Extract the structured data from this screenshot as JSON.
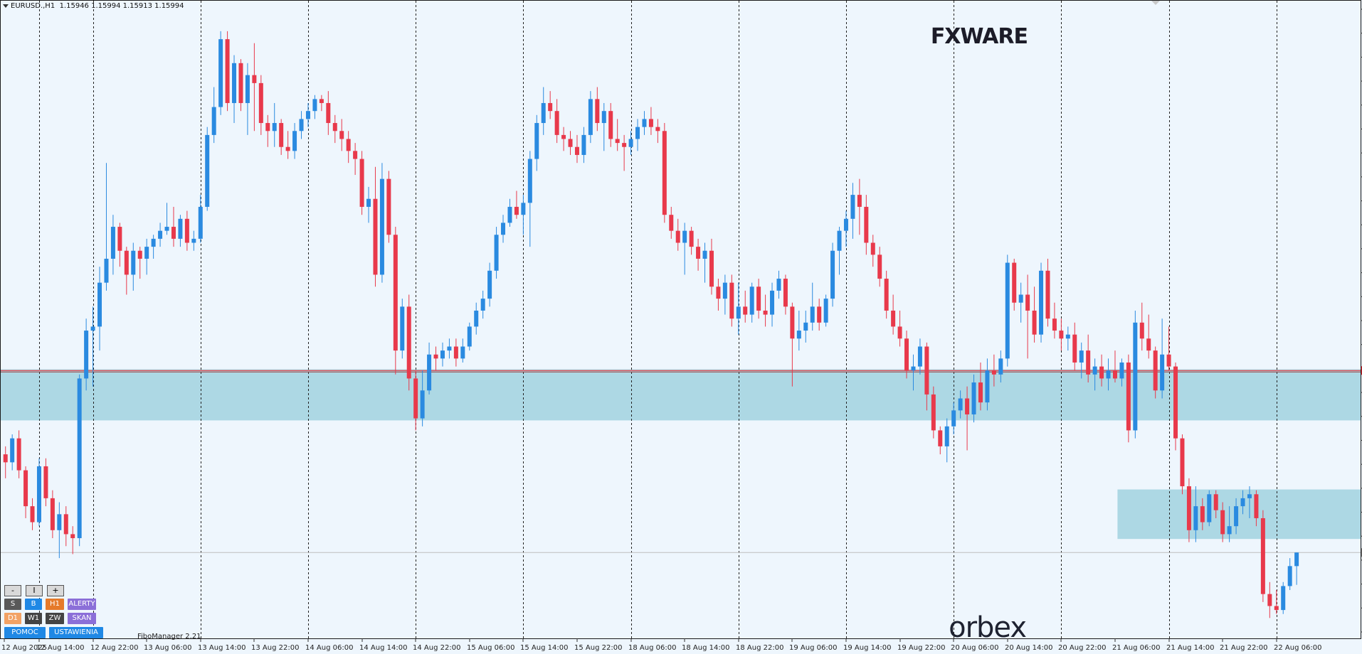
{
  "header": {
    "symbol": "EURUSD.,H1",
    "ohlc": "1.15946 1.15994 1.15913 1.15994"
  },
  "colors": {
    "background": "#eef6fd",
    "bull": "#2a8ae0",
    "bear": "#e8394b",
    "zone": "#a9d6e3",
    "price_marker_red": "#e8252f",
    "price_marker_gray": "#7a7a7a"
  },
  "logos": {
    "fxware": "FXWARE",
    "orbex": "orbex"
  },
  "fibo_label": "FiboManager 2.21",
  "panel": {
    "minus": "-",
    "reset": "I",
    "plus": "+",
    "buttons": [
      {
        "label": "S",
        "color": "gray"
      },
      {
        "label": "B",
        "color": "blue"
      },
      {
        "label": "H1",
        "color": "orange"
      },
      {
        "label": "ALERTY",
        "color": "purple"
      },
      {
        "label": "D1",
        "color": "peach"
      },
      {
        "label": "W1",
        "color": "dark"
      },
      {
        "label": "ZW",
        "color": "dark"
      },
      {
        "label": "SKAN",
        "color": "purple"
      },
      {
        "label": "POMOC",
        "color": "blue"
      },
      {
        "label": "USTAWIENIA",
        "color": "blue"
      }
    ]
  },
  "chart_data": {
    "type": "candlestick",
    "symbol": "EURUSD.",
    "timeframe": "H1",
    "ylim": [
      1.15775,
      1.17395
    ],
    "y_ticks": [
      "1.17355",
      "1.17295",
      "1.17235",
      "1.17175",
      "1.17115",
      "1.17055",
      "1.16995",
      "1.16935",
      "1.16875",
      "1.16815",
      "1.16755",
      "1.16695",
      "1.16635",
      "1.16575",
      "1.16515",
      "1.16455",
      "1.16395",
      "1.16335",
      "1.16275",
      "1.16215",
      "1.16155",
      "1.16095",
      "1.16035",
      "1.15975",
      "1.15915",
      "1.15855",
      "1.15795"
    ],
    "x_ticks": [
      "12 Aug 2025",
      "12 Aug 14:00",
      "12 Aug 22:00",
      "13 Aug 06:00",
      "13 Aug 14:00",
      "13 Aug 22:00",
      "14 Aug 06:00",
      "14 Aug 14:00",
      "14 Aug 22:00",
      "15 Aug 06:00",
      "15 Aug 14:00",
      "15 Aug 22:00",
      "18 Aug 06:00",
      "18 Aug 14:00",
      "18 Aug 22:00",
      "19 Aug 06:00",
      "19 Aug 14:00",
      "19 Aug 22:00",
      "20 Aug 06:00",
      "20 Aug 14:00",
      "20 Aug 22:00",
      "21 Aug 06:00",
      "21 Aug 14:00",
      "21 Aug 22:00",
      "22 Aug 06:00"
    ],
    "period_separators_x": [
      "12 Aug 14:00",
      "12 Aug 22:00",
      "13 Aug 14:00",
      "14 Aug 06:00",
      "14 Aug 22:00",
      "15 Aug 14:00",
      "18 Aug 06:00",
      "18 Aug 22:00",
      "19 Aug 14:00",
      "20 Aug 06:00",
      "20 Aug 22:00",
      "21 Aug 14:00",
      "22 Aug 06:00"
    ],
    "price_markers": [
      {
        "label": "1.16450",
        "price": 1.1645,
        "color": "red"
      },
      {
        "label": "1.15994",
        "price": 1.15994,
        "color": "gray"
      }
    ],
    "zones": [
      {
        "from_bar": 0,
        "to_bar": 190,
        "low": 1.16325,
        "high": 1.16453
      },
      {
        "from_bar": 166,
        "to_bar": 196,
        "low": 1.16028,
        "high": 1.16152
      }
    ],
    "candles": [
      [
        1.1624,
        1.1626,
        1.1618,
        1.1622
      ],
      [
        1.1622,
        1.1629,
        1.162,
        1.1628
      ],
      [
        1.1628,
        1.163,
        1.1618,
        1.162
      ],
      [
        1.162,
        1.1621,
        1.1608,
        1.1611
      ],
      [
        1.1611,
        1.1613,
        1.1605,
        1.1607
      ],
      [
        1.1607,
        1.1623,
        1.1606,
        1.1621
      ],
      [
        1.1621,
        1.1623,
        1.1611,
        1.1613
      ],
      [
        1.1613,
        1.1615,
        1.1603,
        1.1605
      ],
      [
        1.1605,
        1.1612,
        1.1598,
        1.1609
      ],
      [
        1.1609,
        1.1611,
        1.1601,
        1.1604
      ],
      [
        1.1604,
        1.1606,
        1.1599,
        1.1603
      ],
      [
        1.1603,
        1.1644,
        1.1601,
        1.1643
      ],
      [
        1.1643,
        1.1658,
        1.164,
        1.1655
      ],
      [
        1.1655,
        1.1661,
        1.1641,
        1.1656
      ],
      [
        1.1656,
        1.1671,
        1.165,
        1.1667
      ],
      [
        1.1667,
        1.1697,
        1.1665,
        1.1673
      ],
      [
        1.1673,
        1.1684,
        1.1669,
        1.1681
      ],
      [
        1.1681,
        1.1682,
        1.1671,
        1.1675
      ],
      [
        1.1675,
        1.1676,
        1.1664,
        1.1669
      ],
      [
        1.1669,
        1.1677,
        1.1665,
        1.1675
      ],
      [
        1.1675,
        1.1676,
        1.1668,
        1.1673
      ],
      [
        1.1673,
        1.1678,
        1.1669,
        1.1676
      ],
      [
        1.1676,
        1.1679,
        1.1673,
        1.1678
      ],
      [
        1.1678,
        1.1682,
        1.1676,
        1.168
      ],
      [
        1.168,
        1.1687,
        1.1679,
        1.1681
      ],
      [
        1.1681,
        1.1686,
        1.1676,
        1.1678
      ],
      [
        1.1678,
        1.1684,
        1.1676,
        1.1683
      ],
      [
        1.1683,
        1.1685,
        1.1675,
        1.1677
      ],
      [
        1.1677,
        1.168,
        1.1675,
        1.1678
      ],
      [
        1.1678,
        1.1689,
        1.1677,
        1.1686
      ],
      [
        1.1686,
        1.1706,
        1.1685,
        1.1704
      ],
      [
        1.1704,
        1.1716,
        1.1702,
        1.1711
      ],
      [
        1.1711,
        1.173,
        1.1709,
        1.1728
      ],
      [
        1.1728,
        1.173,
        1.171,
        1.1712
      ],
      [
        1.1712,
        1.1724,
        1.1707,
        1.1722
      ],
      [
        1.1722,
        1.1723,
        1.171,
        1.1712
      ],
      [
        1.1712,
        1.1722,
        1.1704,
        1.1719
      ],
      [
        1.1719,
        1.1727,
        1.1705,
        1.1717
      ],
      [
        1.1717,
        1.1719,
        1.1704,
        1.1707
      ],
      [
        1.1707,
        1.1709,
        1.1701,
        1.1705
      ],
      [
        1.1705,
        1.1712,
        1.1701,
        1.1707
      ],
      [
        1.1707,
        1.1708,
        1.1699,
        1.1701
      ],
      [
        1.1701,
        1.1705,
        1.1698,
        1.17
      ],
      [
        1.17,
        1.1707,
        1.1698,
        1.1705
      ],
      [
        1.1705,
        1.171,
        1.1703,
        1.1708
      ],
      [
        1.1708,
        1.1712,
        1.1706,
        1.171
      ],
      [
        1.171,
        1.1714,
        1.1708,
        1.1713
      ],
      [
        1.1713,
        1.1714,
        1.171,
        1.1712
      ],
      [
        1.1712,
        1.1715,
        1.1704,
        1.1707
      ],
      [
        1.1707,
        1.1709,
        1.1702,
        1.1705
      ],
      [
        1.1705,
        1.1708,
        1.17,
        1.1703
      ],
      [
        1.1703,
        1.1705,
        1.1697,
        1.17
      ],
      [
        1.17,
        1.1702,
        1.1694,
        1.1698
      ],
      [
        1.1698,
        1.17,
        1.1684,
        1.1686
      ],
      [
        1.1686,
        1.1691,
        1.1682,
        1.1688
      ],
      [
        1.1688,
        1.1696,
        1.1666,
        1.1669
      ],
      [
        1.1669,
        1.1697,
        1.1667,
        1.1693
      ],
      [
        1.1693,
        1.1695,
        1.1677,
        1.1679
      ],
      [
        1.1679,
        1.1681,
        1.1644,
        1.165
      ],
      [
        1.165,
        1.1663,
        1.1648,
        1.1661
      ],
      [
        1.1661,
        1.1664,
        1.164,
        1.1643
      ],
      [
        1.1643,
        1.1645,
        1.163,
        1.1633
      ],
      [
        1.1633,
        1.1645,
        1.1631,
        1.164
      ],
      [
        1.164,
        1.1652,
        1.1639,
        1.1649
      ],
      [
        1.1649,
        1.1651,
        1.1645,
        1.1648
      ],
      [
        1.1648,
        1.1652,
        1.1646,
        1.165
      ],
      [
        1.165,
        1.1653,
        1.1648,
        1.1651
      ],
      [
        1.1651,
        1.1653,
        1.1646,
        1.1648
      ],
      [
        1.1648,
        1.1653,
        1.1647,
        1.1651
      ],
      [
        1.1651,
        1.1657,
        1.165,
        1.1656
      ],
      [
        1.1656,
        1.1662,
        1.1654,
        1.166
      ],
      [
        1.166,
        1.1665,
        1.1658,
        1.1663
      ],
      [
        1.1663,
        1.1672,
        1.1661,
        1.167
      ],
      [
        1.167,
        1.1681,
        1.1668,
        1.1679
      ],
      [
        1.1679,
        1.1684,
        1.1677,
        1.1682
      ],
      [
        1.1682,
        1.1688,
        1.1681,
        1.1686
      ],
      [
        1.1686,
        1.169,
        1.1683,
        1.1684
      ],
      [
        1.1684,
        1.1689,
        1.1679,
        1.1687
      ],
      [
        1.1687,
        1.17,
        1.1676,
        1.1698
      ],
      [
        1.1698,
        1.1709,
        1.1695,
        1.1707
      ],
      [
        1.1707,
        1.1716,
        1.1704,
        1.1712
      ],
      [
        1.1712,
        1.1715,
        1.1708,
        1.171
      ],
      [
        1.171,
        1.1713,
        1.1702,
        1.1704
      ],
      [
        1.1704,
        1.1706,
        1.17,
        1.1703
      ],
      [
        1.1703,
        1.1705,
        1.1699,
        1.1701
      ],
      [
        1.1701,
        1.1704,
        1.1697,
        1.1699
      ],
      [
        1.1699,
        1.1706,
        1.1697,
        1.1704
      ],
      [
        1.1704,
        1.1715,
        1.1702,
        1.1713
      ],
      [
        1.1713,
        1.1716,
        1.1705,
        1.1707
      ],
      [
        1.1707,
        1.1712,
        1.17,
        1.171
      ],
      [
        1.171,
        1.1712,
        1.1701,
        1.1703
      ],
      [
        1.1703,
        1.1708,
        1.17,
        1.1702
      ],
      [
        1.1702,
        1.1704,
        1.1695,
        1.1701
      ],
      [
        1.1701,
        1.1705,
        1.1699,
        1.1703
      ],
      [
        1.1703,
        1.1708,
        1.17,
        1.1706
      ],
      [
        1.1706,
        1.171,
        1.1704,
        1.1708
      ],
      [
        1.1708,
        1.1711,
        1.1704,
        1.1706
      ],
      [
        1.1706,
        1.1708,
        1.1702,
        1.1705
      ],
      [
        1.1705,
        1.1707,
        1.1682,
        1.1684
      ],
      [
        1.1684,
        1.1686,
        1.1678,
        1.168
      ],
      [
        1.168,
        1.1683,
        1.1675,
        1.1677
      ],
      [
        1.1677,
        1.1682,
        1.1669,
        1.168
      ],
      [
        1.168,
        1.1681,
        1.1674,
        1.1676
      ],
      [
        1.1676,
        1.1678,
        1.167,
        1.1673
      ],
      [
        1.1673,
        1.1677,
        1.1667,
        1.1675
      ],
      [
        1.1675,
        1.1678,
        1.1664,
        1.1666
      ],
      [
        1.1666,
        1.1668,
        1.166,
        1.1663
      ],
      [
        1.1663,
        1.1669,
        1.1659,
        1.1667
      ],
      [
        1.1667,
        1.1669,
        1.1656,
        1.1658
      ],
      [
        1.1658,
        1.1667,
        1.1654,
        1.1661
      ],
      [
        1.1661,
        1.1665,
        1.1657,
        1.1659
      ],
      [
        1.1659,
        1.1667,
        1.1657,
        1.1666
      ],
      [
        1.1666,
        1.1668,
        1.1658,
        1.166
      ],
      [
        1.166,
        1.1664,
        1.1656,
        1.1659
      ],
      [
        1.1659,
        1.1667,
        1.1656,
        1.1665
      ],
      [
        1.1665,
        1.167,
        1.1663,
        1.1668
      ],
      [
        1.1668,
        1.1669,
        1.1659,
        1.1661
      ],
      [
        1.1661,
        1.1662,
        1.1641,
        1.1653
      ],
      [
        1.1653,
        1.166,
        1.165,
        1.1655
      ],
      [
        1.1655,
        1.166,
        1.1652,
        1.1657
      ],
      [
        1.1657,
        1.1667,
        1.1655,
        1.1661
      ],
      [
        1.1661,
        1.1663,
        1.1655,
        1.1657
      ],
      [
        1.1657,
        1.1664,
        1.1656,
        1.1663
      ],
      [
        1.1663,
        1.1677,
        1.1661,
        1.1675
      ],
      [
        1.1675,
        1.1681,
        1.1669,
        1.168
      ],
      [
        1.168,
        1.1685,
        1.1676,
        1.1683
      ],
      [
        1.1683,
        1.1692,
        1.1678,
        1.1689
      ],
      [
        1.1689,
        1.1693,
        1.1679,
        1.1686
      ],
      [
        1.1686,
        1.1689,
        1.1674,
        1.1677
      ],
      [
        1.1677,
        1.1679,
        1.1671,
        1.1674
      ],
      [
        1.1674,
        1.1676,
        1.1666,
        1.1668
      ],
      [
        1.1668,
        1.167,
        1.1658,
        1.166
      ],
      [
        1.166,
        1.1664,
        1.1654,
        1.1656
      ],
      [
        1.1656,
        1.166,
        1.1651,
        1.1653
      ],
      [
        1.1653,
        1.1655,
        1.1643,
        1.1645
      ],
      [
        1.1645,
        1.1649,
        1.164,
        1.1646
      ],
      [
        1.1646,
        1.1653,
        1.1644,
        1.1651
      ],
      [
        1.1651,
        1.1652,
        1.1635,
        1.1639
      ],
      [
        1.1639,
        1.1641,
        1.1628,
        1.163
      ],
      [
        1.163,
        1.1631,
        1.1624,
        1.1626
      ],
      [
        1.1626,
        1.1633,
        1.1622,
        1.1631
      ],
      [
        1.1631,
        1.1637,
        1.1629,
        1.1635
      ],
      [
        1.1635,
        1.164,
        1.1633,
        1.1638
      ],
      [
        1.1638,
        1.1641,
        1.1625,
        1.1634
      ],
      [
        1.1634,
        1.1644,
        1.1632,
        1.1642
      ],
      [
        1.1642,
        1.1647,
        1.1635,
        1.1637
      ],
      [
        1.1637,
        1.1648,
        1.1635,
        1.1645
      ],
      [
        1.1645,
        1.1649,
        1.1641,
        1.1644
      ],
      [
        1.1644,
        1.165,
        1.1642,
        1.1648
      ],
      [
        1.1648,
        1.1674,
        1.1646,
        1.1672
      ],
      [
        1.1672,
        1.1673,
        1.166,
        1.1662
      ],
      [
        1.1662,
        1.1667,
        1.1657,
        1.1664
      ],
      [
        1.1664,
        1.1669,
        1.1648,
        1.166
      ],
      [
        1.166,
        1.1666,
        1.1652,
        1.1654
      ],
      [
        1.1654,
        1.1672,
        1.1652,
        1.167
      ],
      [
        1.167,
        1.1673,
        1.1656,
        1.1658
      ],
      [
        1.1658,
        1.1662,
        1.1653,
        1.1655
      ],
      [
        1.1655,
        1.1658,
        1.165,
        1.1653
      ],
      [
        1.1653,
        1.1656,
        1.165,
        1.1654
      ],
      [
        1.1654,
        1.1657,
        1.1645,
        1.1647
      ],
      [
        1.1647,
        1.1652,
        1.1643,
        1.165
      ],
      [
        1.165,
        1.1654,
        1.1642,
        1.1644
      ],
      [
        1.1644,
        1.1648,
        1.164,
        1.1646
      ],
      [
        1.1646,
        1.1649,
        1.1641,
        1.1643
      ],
      [
        1.1643,
        1.1648,
        1.164,
        1.1645
      ],
      [
        1.1645,
        1.165,
        1.1642,
        1.1643
      ],
      [
        1.1643,
        1.1648,
        1.1641,
        1.1647
      ],
      [
        1.1647,
        1.1649,
        1.1627,
        1.163
      ],
      [
        1.163,
        1.166,
        1.1628,
        1.1657
      ],
      [
        1.1657,
        1.1662,
        1.165,
        1.1653
      ],
      [
        1.1653,
        1.1659,
        1.1648,
        1.165
      ],
      [
        1.165,
        1.1651,
        1.1638,
        1.164
      ],
      [
        1.164,
        1.1658,
        1.1638,
        1.1649
      ],
      [
        1.1649,
        1.1656,
        1.1645,
        1.1646
      ],
      [
        1.1646,
        1.1647,
        1.1625,
        1.1628
      ],
      [
        1.1628,
        1.1629,
        1.1614,
        1.1616
      ],
      [
        1.1616,
        1.1618,
        1.1602,
        1.1605
      ],
      [
        1.1605,
        1.1616,
        1.1602,
        1.1611
      ],
      [
        1.1611,
        1.1613,
        1.1605,
        1.1607
      ],
      [
        1.1607,
        1.1615,
        1.1606,
        1.1614
      ],
      [
        1.1614,
        1.1615,
        1.1608,
        1.161
      ],
      [
        1.161,
        1.1612,
        1.1602,
        1.1604
      ],
      [
        1.1604,
        1.1611,
        1.1602,
        1.1606
      ],
      [
        1.1606,
        1.1613,
        1.1604,
        1.1611
      ],
      [
        1.1611,
        1.1615,
        1.1609,
        1.1613
      ],
      [
        1.1613,
        1.1616,
        1.1608,
        1.1614
      ],
      [
        1.1614,
        1.1615,
        1.1606,
        1.1608
      ],
      [
        1.1608,
        1.161,
        1.1587,
        1.1589
      ],
      [
        1.1589,
        1.1592,
        1.1583,
        1.1586
      ],
      [
        1.1586,
        1.159,
        1.1584,
        1.1585
      ],
      [
        1.1585,
        1.1592,
        1.1584,
        1.1591
      ],
      [
        1.1591,
        1.1598,
        1.159,
        1.1596
      ],
      [
        1.1596,
        1.15994,
        1.15913,
        1.15994
      ]
    ]
  }
}
